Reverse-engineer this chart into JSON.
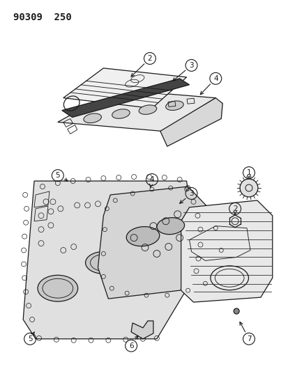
{
  "title": "90309  250",
  "background_color": "#ffffff",
  "line_color": "#1a1a1a",
  "fig_width": 4.14,
  "fig_height": 5.33,
  "dpi": 100,
  "title_fontsize": 10,
  "label_fontsize": 7.5
}
